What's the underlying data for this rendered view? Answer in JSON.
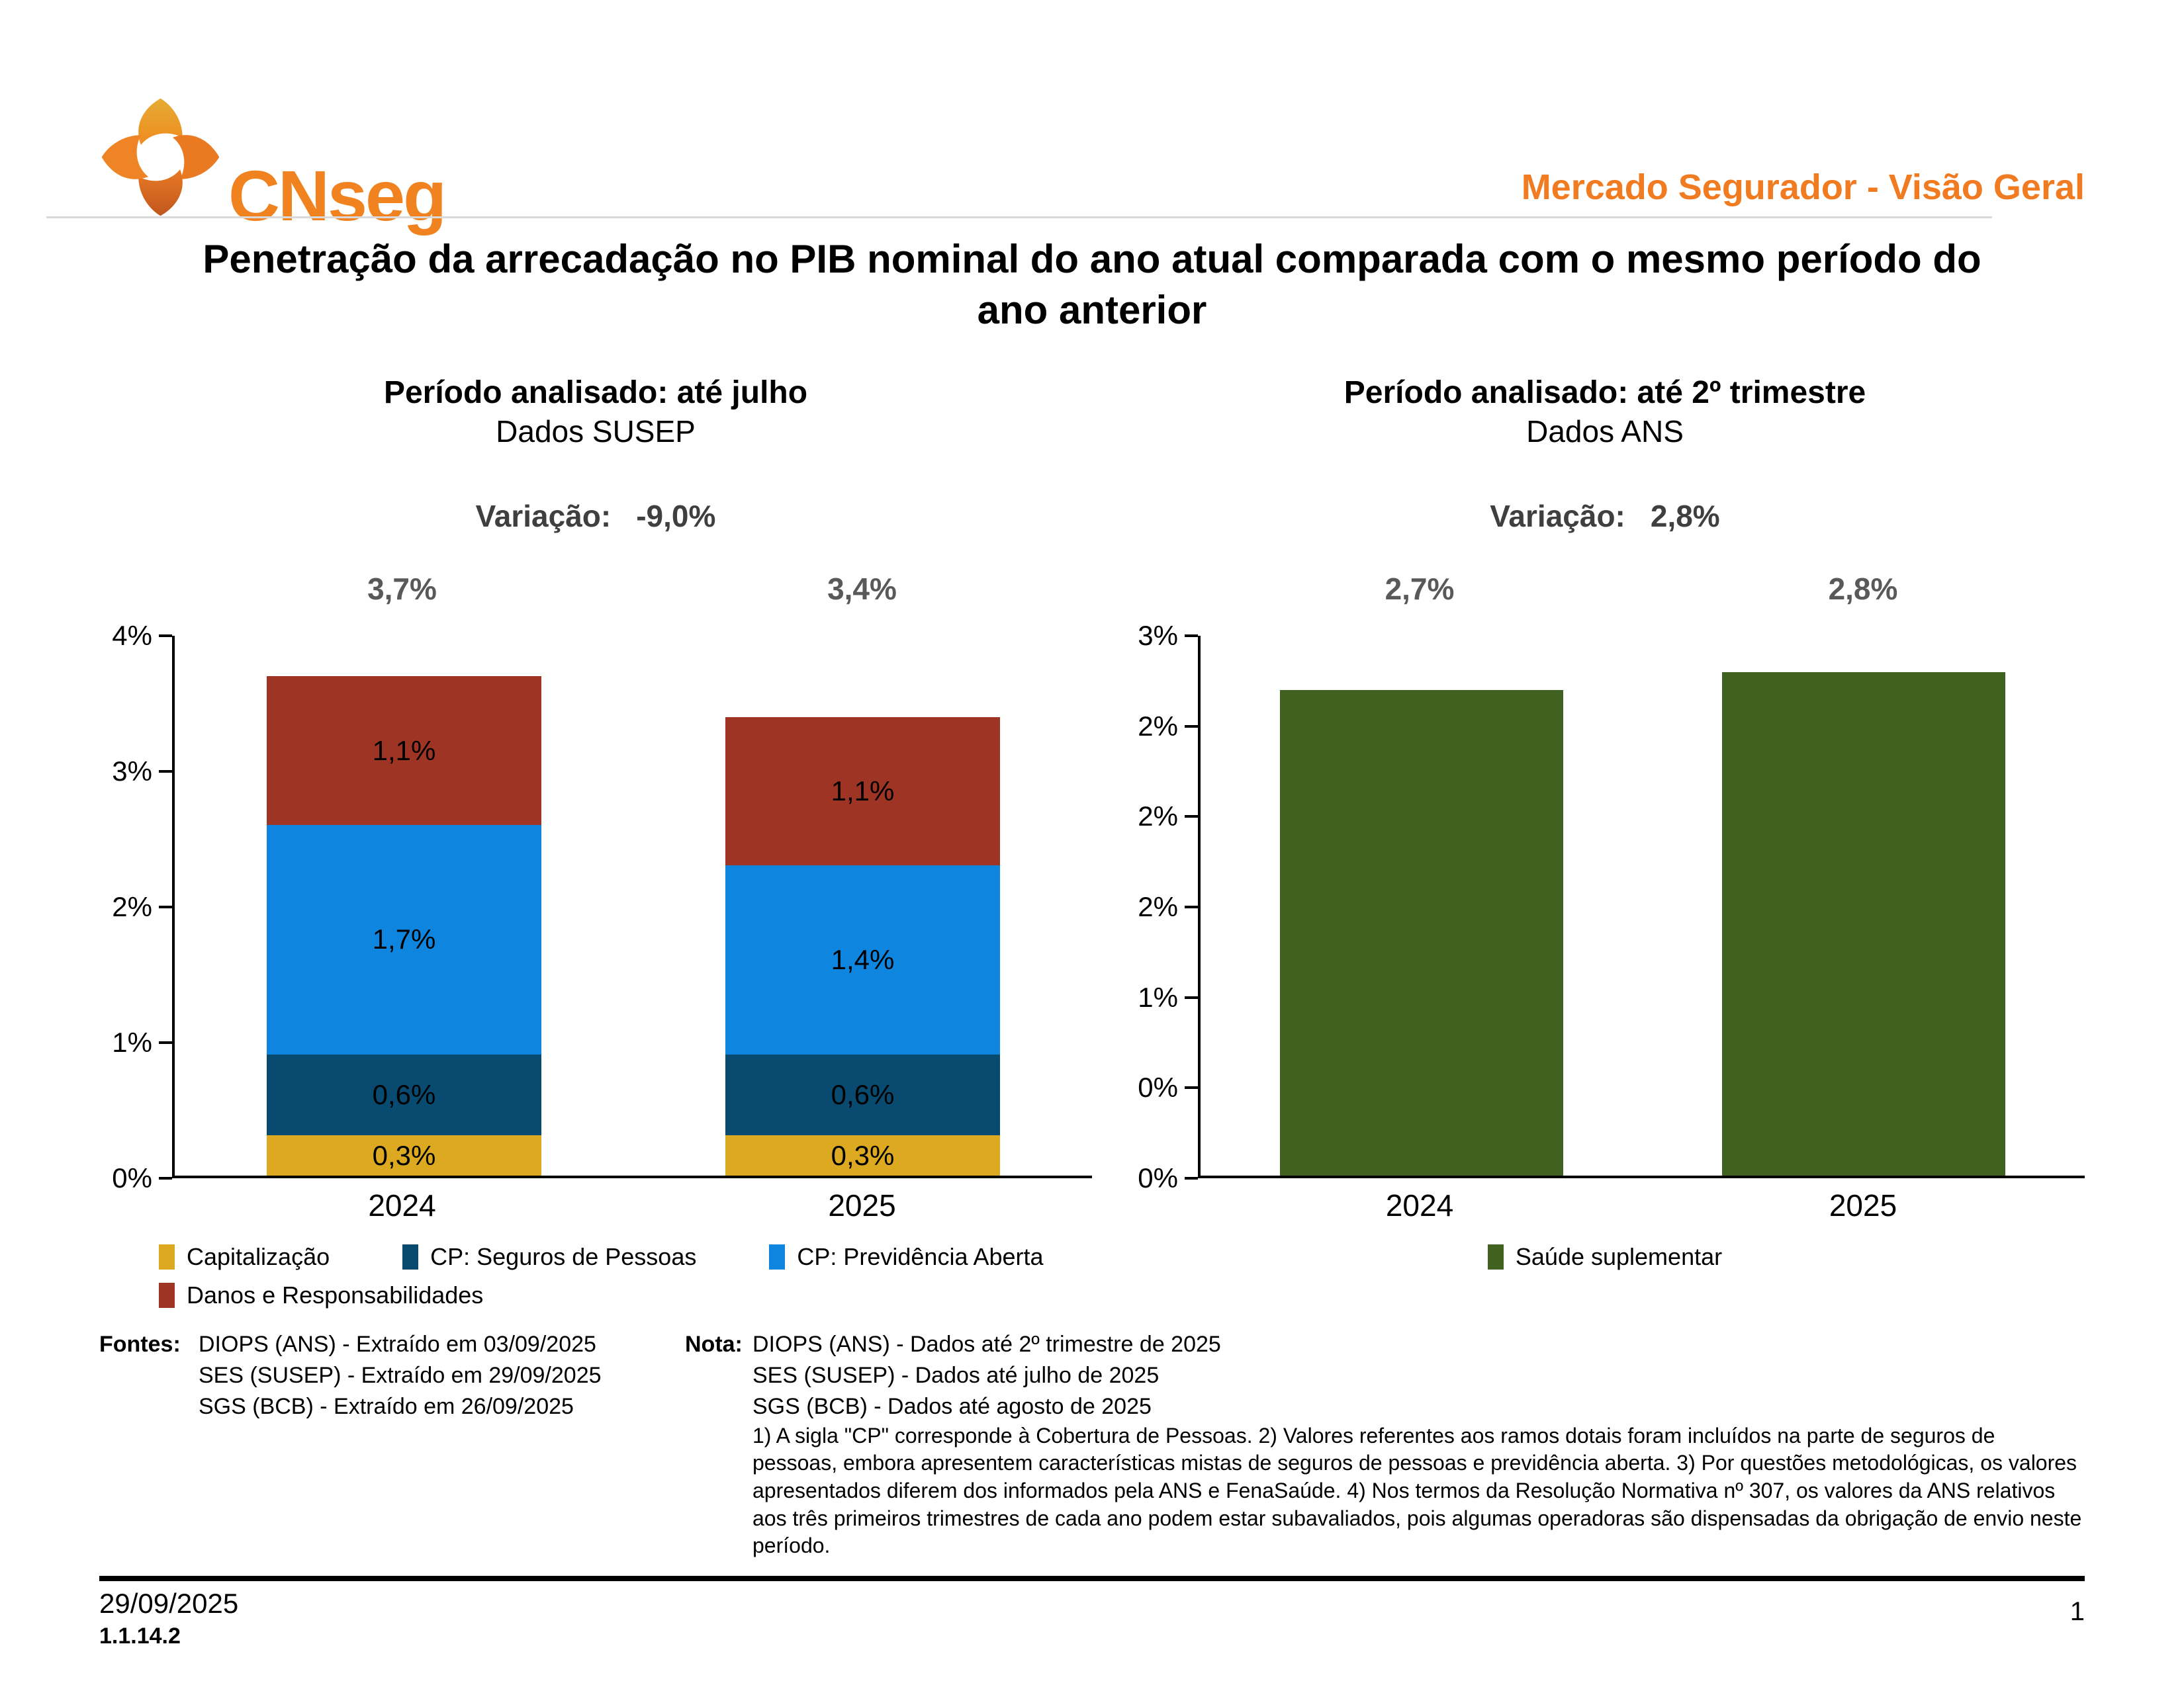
{
  "header": {
    "logo_text": "CNseg",
    "right_title": "Mercado Segurador - Visão Geral",
    "accent_color": "#F07B21"
  },
  "title": "Penetração da arrecadação no PIB nominal do ano atual comparada com o mesmo período do ano anterior",
  "chart_data": [
    {
      "type": "bar",
      "stacked": true,
      "title": "Período analisado: até julho",
      "subtitle": "Dados SUSEP",
      "variation_label": "Variação:",
      "variation_value": "-9,0%",
      "categories": [
        "2024",
        "2025"
      ],
      "series": [
        {
          "name": "Capitalização",
          "color": "#DCA920",
          "values": [
            0.3,
            0.3
          ]
        },
        {
          "name": "CP: Seguros de Pessoas",
          "color": "#084A70",
          "values": [
            0.6,
            0.6
          ]
        },
        {
          "name": "CP: Previdência Aberta",
          "color": "#0E86DF",
          "values": [
            1.7,
            1.4
          ]
        },
        {
          "name": "Danos e Responsabilidades",
          "color": "#9E3423",
          "values": [
            1.1,
            1.1
          ]
        }
      ],
      "segment_labels": [
        [
          "0,3%",
          "0,6%",
          "1,7%",
          "1,1%"
        ],
        [
          "0,3%",
          "0,6%",
          "1,4%",
          "1,1%"
        ]
      ],
      "totals": [
        3.7,
        3.4
      ],
      "total_labels": [
        "3,7%",
        "3,4%"
      ],
      "ylim": [
        0,
        4
      ],
      "y_tick_labels": [
        "4%",
        "3%",
        "2%",
        "1%",
        "0%"
      ],
      "legend_position": "bottom-left",
      "grid": false
    },
    {
      "type": "bar",
      "stacked": false,
      "title": "Período analisado: até 2º trimestre",
      "subtitle": "Dados ANS",
      "variation_label": "Variação:",
      "variation_value": "2,8%",
      "categories": [
        "2024",
        "2025"
      ],
      "series": [
        {
          "name": "Saúde suplementar",
          "color": "#40611F",
          "values": [
            2.7,
            2.8
          ]
        }
      ],
      "totals": [
        2.7,
        2.8
      ],
      "total_labels": [
        "2,7%",
        "2,8%"
      ],
      "ylim": [
        0,
        3
      ],
      "y_tick_labels": [
        "3%",
        "2%",
        "2%",
        "2%",
        "1%",
        "0%",
        "0%"
      ],
      "legend_position": "bottom-center",
      "grid": false
    }
  ],
  "footer": {
    "fontes_label": "Fontes:",
    "fontes_lines": [
      "DIOPS (ANS) -  Extraído em 03/09/2025",
      "SES (SUSEP) -  Extraído em 29/09/2025",
      "SGS (BCB) -  Extraído em 26/09/2025"
    ],
    "nota_label": "Nota:",
    "nota_lines": [
      "DIOPS (ANS) - Dados até 2º trimestre de 2025",
      "SES (SUSEP) - Dados até julho de 2025",
      "SGS (BCB) - Dados até agosto de 2025"
    ],
    "nota_paragraph": "1) A sigla \"CP\" corresponde à Cobertura de Pessoas. 2) Valores referentes aos ramos dotais foram incluídos na parte de seguros de pessoas, embora apresentem características mistas de seguros de pessoas e previdência aberta. 3) Por questões metodológicas, os valores apresentados diferem dos informados pela ANS e FenaSaúde. 4) Nos termos da Resolução Normativa nº 307, os valores da ANS relativos aos três primeiros trimestres de cada ano podem estar subavaliados, pois algumas operadoras são dispensadas da obrigação de envio neste período.",
    "date": "29/09/2025",
    "version": "1.1.14.2",
    "page_number": "1"
  }
}
